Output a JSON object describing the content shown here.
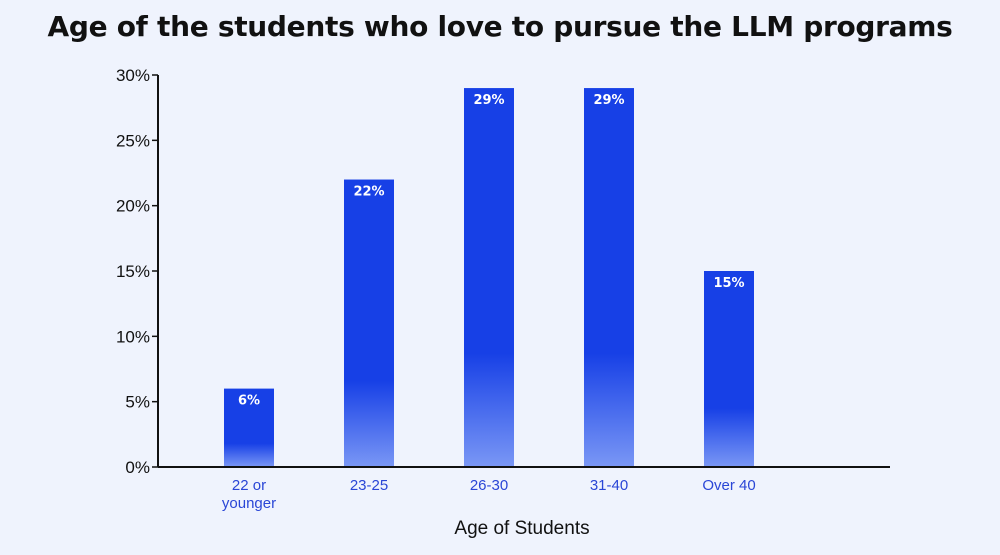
{
  "chart_data": {
    "type": "bar",
    "title": "Age of the students who love to pursue the LLM programs",
    "xlabel": "Age of Students",
    "ylabel": "",
    "categories": [
      "22 or younger",
      "23-25",
      "26-30",
      "31-40",
      "Over 40"
    ],
    "category_lines": [
      [
        "22 or",
        "younger"
      ],
      [
        "23-25"
      ],
      [
        "26-30"
      ],
      [
        "31-40"
      ],
      [
        "Over 40"
      ]
    ],
    "values": [
      6,
      22,
      29,
      29,
      15
    ],
    "value_labels": [
      "6%",
      "22%",
      "29%",
      "29%",
      "15%"
    ],
    "ylim": [
      0,
      30
    ],
    "yticks": [
      0,
      5,
      10,
      15,
      20,
      25,
      30
    ],
    "ytick_labels": [
      "0%",
      "5%",
      "10%",
      "15%",
      "20%",
      "25%",
      "30%"
    ],
    "grid": false,
    "legend": "none"
  },
  "colors": {
    "background": "#eff3fd",
    "bar_top": "#1740e6",
    "bar_bottom": "#7a97f5",
    "category_label": "#2a46d6",
    "axis": "#111111"
  }
}
